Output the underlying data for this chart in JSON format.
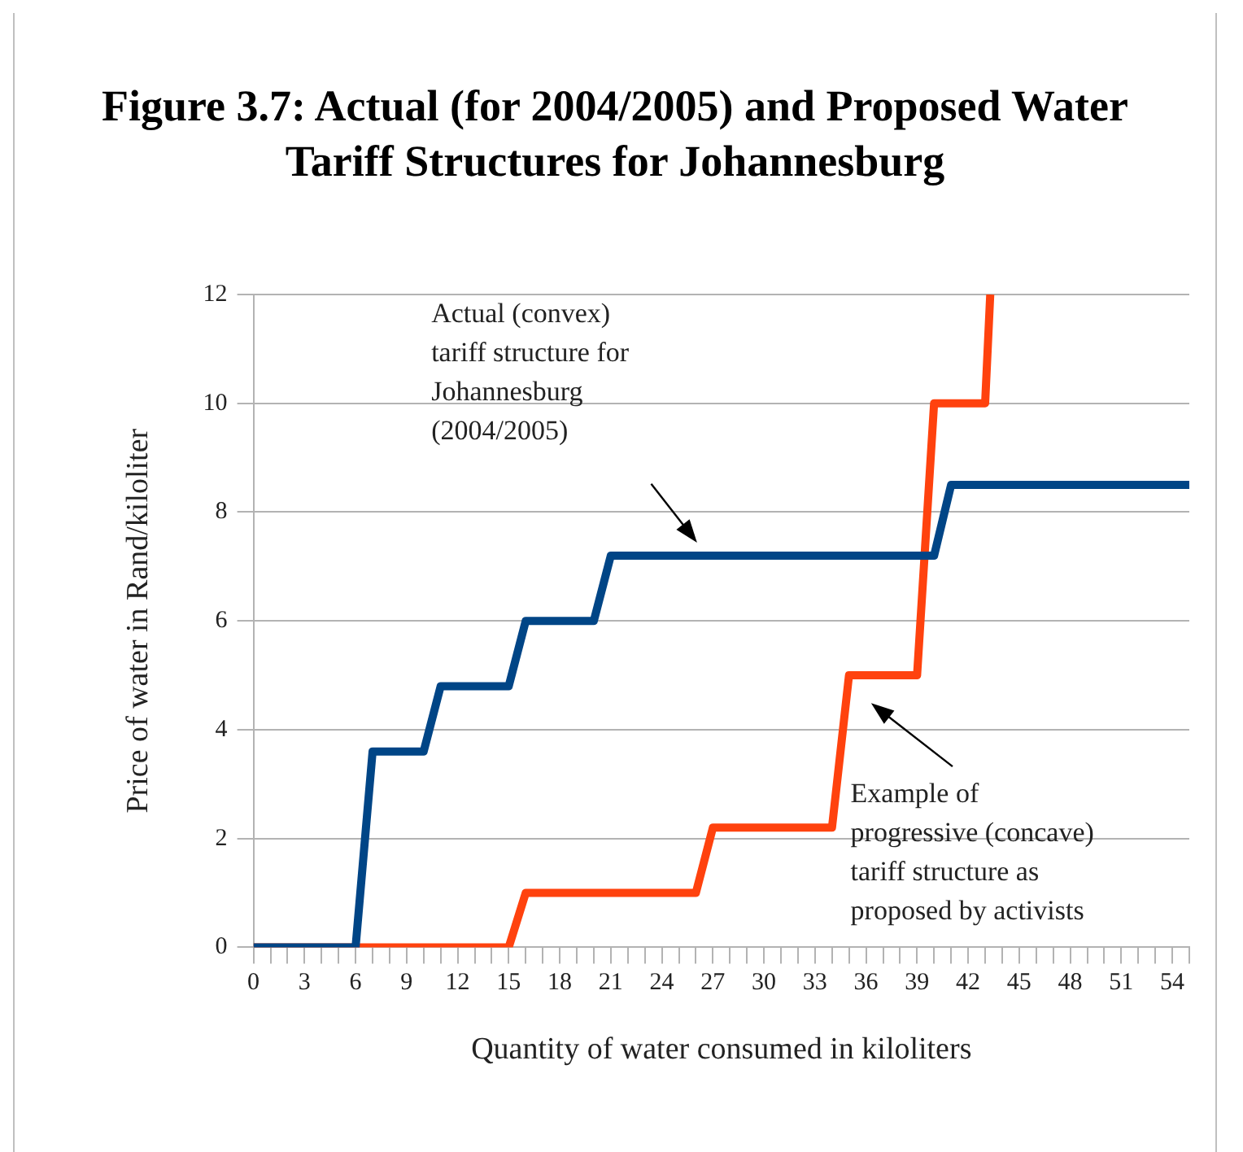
{
  "chart_data": {
    "type": "line",
    "title": "Figure 3.7: Actual (for 2004/2005) and Proposed Water Tariff Structures for Johannesburg",
    "xlabel": "Quantity of water consumed in kiloliters",
    "ylabel": "Price of water in Rand/kiloliter",
    "xlim": [
      0,
      55
    ],
    "xticks": [
      0,
      {
        "value": 1,
        "label": null
      },
      {
        "value": 2,
        "label": null
      },
      3,
      {
        "value": 4,
        "label": null
      },
      {
        "value": 5,
        "label": null
      },
      6,
      {
        "value": 7,
        "label": null
      },
      {
        "value": 8,
        "label": null
      },
      9,
      {
        "value": 10,
        "label": null
      },
      {
        "value": 11,
        "label": null
      },
      12,
      {
        "value": 13,
        "label": null
      },
      {
        "value": 14,
        "label": null
      },
      15,
      {
        "value": 16,
        "label": null
      },
      {
        "value": 17,
        "label": null
      },
      18,
      {
        "value": 19,
        "label": null
      },
      {
        "value": 20,
        "label": null
      },
      21,
      {
        "value": 22,
        "label": null
      },
      {
        "value": 23,
        "label": null
      },
      24,
      {
        "value": 25,
        "label": null
      },
      {
        "value": 26,
        "label": null
      },
      27,
      {
        "value": 28,
        "label": null
      },
      {
        "value": 29,
        "label": null
      },
      30,
      {
        "value": 31,
        "label": null
      },
      {
        "value": 32,
        "label": null
      },
      33,
      {
        "value": 34,
        "label": null
      },
      {
        "value": 35,
        "label": null
      },
      36,
      {
        "value": 37,
        "label": null
      },
      {
        "value": 38,
        "label": null
      },
      39,
      {
        "value": 40,
        "label": null
      },
      {
        "value": 41,
        "label": null
      },
      42,
      {
        "value": 43,
        "label": null
      },
      {
        "value": 44,
        "label": null
      },
      45,
      {
        "value": 46,
        "label": null
      },
      {
        "value": 47,
        "label": null
      },
      48,
      {
        "value": 49,
        "label": null
      },
      {
        "value": 50,
        "label": null
      },
      51,
      {
        "value": 52,
        "label": null
      },
      {
        "value": 53,
        "label": null
      },
      54,
      {
        "value": 55,
        "label": null
      }
    ],
    "ylim": [
      0,
      12
    ],
    "yticks": [
      0,
      2,
      4,
      6,
      8,
      10,
      12
    ],
    "grid": "y",
    "legend": false,
    "marker": "none",
    "line_style": "solid",
    "series": [
      {
        "color": "#004586",
        "x": [
          0,
          6,
          7,
          10,
          11,
          15,
          16,
          20,
          21,
          40,
          41,
          55
        ],
        "values": [
          0,
          0,
          3.6,
          3.6,
          4.8,
          4.8,
          6,
          6,
          7.2,
          7.2,
          8.5,
          8.5
        ]
      },
      {
        "color": "#ff420e",
        "x": [
          0,
          15,
          16,
          26,
          27,
          34,
          35,
          39,
          40,
          43,
          43.3
        ],
        "values": [
          0,
          0,
          1,
          1,
          2.2,
          2.2,
          5,
          5,
          10,
          10,
          12
        ]
      }
    ],
    "annotations": [
      "Actual (convex)\ntariff structure for\nJohannesburg\n(2004/2005)",
      "Example of\nprogressive (concave)\ntariff structure as\nproposed by activists"
    ]
  }
}
